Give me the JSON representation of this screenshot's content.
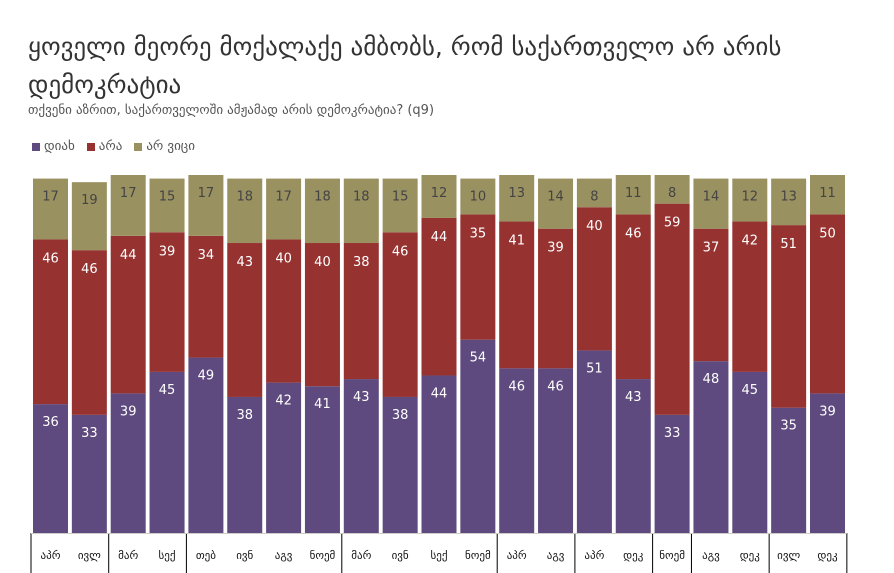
{
  "chart_data": {
    "type": "bar",
    "stacked": true,
    "title": "ყოველი მეორე მოქალაქე ამბობს, რომ საქართველო არ არის დემოკრატია",
    "subtitle": "თქვენი აზრით, საქართველოში ამჟამად არის დემოკრატია? (q9)",
    "legend_position": "top-left",
    "categories": [
      "აპრ",
      "ივლ",
      "მარ",
      "სექ",
      "თებ",
      "ივნ",
      "აგვ",
      "ნოემ",
      "მარ",
      "ივნ",
      "სექ",
      "ნოემ",
      "აპრ",
      "აგვ",
      "აპრ",
      "დეკ",
      "ნოემ",
      "აგვ",
      "დეკ",
      "ივლ",
      "დეკ"
    ],
    "group_sizes": [
      2,
      2,
      4,
      4,
      2,
      2,
      1,
      2,
      2
    ],
    "series": [
      {
        "name": "დიახ",
        "color": "#5e4a7e",
        "values": [
          36,
          33,
          39,
          45,
          49,
          38,
          42,
          41,
          43,
          38,
          44,
          54,
          46,
          46,
          51,
          43,
          33,
          48,
          45,
          35,
          39
        ]
      },
      {
        "name": "არა",
        "color": "#963230",
        "values": [
          46,
          46,
          44,
          39,
          34,
          43,
          40,
          40,
          38,
          46,
          44,
          35,
          41,
          39,
          40,
          46,
          59,
          37,
          42,
          51,
          50
        ]
      },
      {
        "name": "არ ვიცი",
        "color": "#9a9160",
        "values": [
          17,
          19,
          17,
          15,
          17,
          18,
          17,
          18,
          18,
          15,
          12,
          10,
          13,
          14,
          8,
          11,
          8,
          14,
          12,
          13,
          11
        ]
      }
    ],
    "ylim": [
      0,
      100
    ],
    "grid": false
  }
}
